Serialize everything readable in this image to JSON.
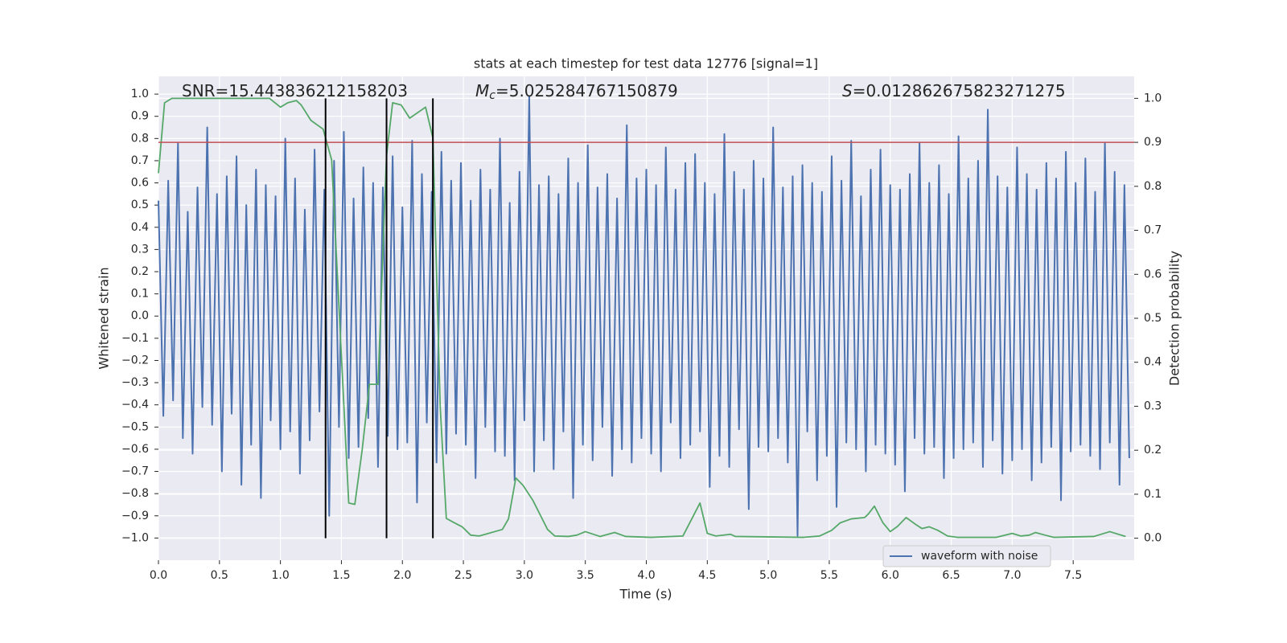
{
  "chart_data": {
    "type": "line",
    "title": "stats at each timestep for test data 12776 [signal=1]",
    "xlabel": "Time (s)",
    "ylabel": "Whitened strain",
    "y2label": "Detection probability",
    "annotations": [
      {
        "text": "SNR=15.443836212158203"
      },
      {
        "symbol": "M",
        "subscript": "c",
        "text": "=5.025284767150879"
      },
      {
        "symbol": "S",
        "text": "=0.012862675823271275"
      }
    ],
    "xlim": [
      0,
      8
    ],
    "xticks": [
      {
        "value": 0,
        "label": "0.0"
      },
      {
        "value": 0.5,
        "label": "0.5"
      },
      {
        "value": 1,
        "label": "1.0"
      },
      {
        "value": 1.5,
        "label": "1.5"
      },
      {
        "value": 2,
        "label": "2.0"
      },
      {
        "value": 2.5,
        "label": "2.5"
      },
      {
        "value": 3,
        "label": "3.0"
      },
      {
        "value": 3.5,
        "label": "3.5"
      },
      {
        "value": 4,
        "label": "4.0"
      },
      {
        "value": 4.5,
        "label": "4.5"
      },
      {
        "value": 5,
        "label": "5.0"
      },
      {
        "value": 5.5,
        "label": "5.5"
      },
      {
        "value": 6,
        "label": "6.0"
      },
      {
        "value": 6.5,
        "label": "6.5"
      },
      {
        "value": 7,
        "label": "7.0"
      },
      {
        "value": 7.5,
        "label": "7.5"
      }
    ],
    "ylim": [
      -1.1,
      1.08
    ],
    "yticks": [
      {
        "value": -1,
        "label": "−1.0"
      },
      {
        "value": -0.9,
        "label": "−0.9"
      },
      {
        "value": -0.8,
        "label": "−0.8"
      },
      {
        "value": -0.7,
        "label": "−0.7"
      },
      {
        "value": -0.6,
        "label": "−0.6"
      },
      {
        "value": -0.5,
        "label": "−0.5"
      },
      {
        "value": -0.4,
        "label": "−0.4"
      },
      {
        "value": -0.3,
        "label": "−0.3"
      },
      {
        "value": -0.2,
        "label": "−0.2"
      },
      {
        "value": -0.1,
        "label": "−0.1"
      },
      {
        "value": 0,
        "label": "0.0"
      },
      {
        "value": 0.1,
        "label": "0.1"
      },
      {
        "value": 0.2,
        "label": "0.2"
      },
      {
        "value": 0.3,
        "label": "0.3"
      },
      {
        "value": 0.4,
        "label": "0.4"
      },
      {
        "value": 0.5,
        "label": "0.5"
      },
      {
        "value": 0.6,
        "label": "0.6"
      },
      {
        "value": 0.7,
        "label": "0.7"
      },
      {
        "value": 0.8,
        "label": "0.8"
      },
      {
        "value": 0.9,
        "label": "0.9"
      },
      {
        "value": 1,
        "label": "1.0"
      }
    ],
    "y2lim": [
      -0.05,
      1.05
    ],
    "y2ticks": [
      {
        "value": 0,
        "label": "0.0"
      },
      {
        "value": 0.1,
        "label": "0.1"
      },
      {
        "value": 0.2,
        "label": "0.2"
      },
      {
        "value": 0.3,
        "label": "0.3"
      },
      {
        "value": 0.4,
        "label": "0.4"
      },
      {
        "value": 0.5,
        "label": "0.5"
      },
      {
        "value": 0.6,
        "label": "0.6"
      },
      {
        "value": 0.7,
        "label": "0.7"
      },
      {
        "value": 0.8,
        "label": "0.8"
      },
      {
        "value": 0.9,
        "label": "0.9"
      },
      {
        "value": 1,
        "label": "1.0"
      }
    ],
    "grid": true,
    "legend": "lower right",
    "threshold": {
      "value": 0.9,
      "axis": "y2",
      "color": "#c44e52"
    },
    "vlines": {
      "values": [
        1.37,
        1.87,
        2.25
      ],
      "color": "#000000"
    },
    "series": [
      {
        "name": "waveform with noise",
        "color": "#4c72b0",
        "legend": true,
        "x": [
          0,
          0.04,
          0.08,
          0.12,
          0.16,
          0.2,
          0.24,
          0.28,
          0.32,
          0.36,
          0.4,
          0.44,
          0.48,
          0.52,
          0.56,
          0.6,
          0.64,
          0.68,
          0.72,
          0.76,
          0.8,
          0.84,
          0.88,
          0.92,
          0.96,
          1,
          1.04,
          1.08,
          1.12,
          1.16,
          1.2,
          1.24,
          1.28,
          1.32,
          1.36,
          1.4,
          1.44,
          1.48,
          1.52,
          1.56,
          1.6,
          1.64,
          1.68,
          1.72,
          1.76,
          1.8,
          1.84,
          1.88,
          1.92,
          1.96,
          2,
          2.04,
          2.08,
          2.12,
          2.16,
          2.2,
          2.24,
          2.28,
          2.32,
          2.36,
          2.4,
          2.44,
          2.48,
          2.52,
          2.56,
          2.6,
          2.64,
          2.68,
          2.72,
          2.76,
          2.8,
          2.84,
          2.88,
          2.92,
          2.96,
          3,
          3.04,
          3.08,
          3.12,
          3.16,
          3.2,
          3.24,
          3.28,
          3.32,
          3.36,
          3.4,
          3.44,
          3.48,
          3.52,
          3.56,
          3.6,
          3.64,
          3.68,
          3.72,
          3.76,
          3.8,
          3.84,
          3.88,
          3.92,
          3.96,
          4,
          4.04,
          4.08,
          4.12,
          4.16,
          4.2,
          4.24,
          4.28,
          4.32,
          4.36,
          4.4,
          4.44,
          4.48,
          4.52,
          4.56,
          4.6,
          4.64,
          4.68,
          4.72,
          4.76,
          4.8,
          4.84,
          4.88,
          4.92,
          4.96,
          5,
          5.04,
          5.08,
          5.12,
          5.16,
          5.2,
          5.24,
          5.28,
          5.32,
          5.36,
          5.4,
          5.44,
          5.48,
          5.52,
          5.56,
          5.6,
          5.64,
          5.68,
          5.72,
          5.76,
          5.8,
          5.84,
          5.88,
          5.92,
          5.96,
          6,
          6.04,
          6.08,
          6.12,
          6.16,
          6.2,
          6.24,
          6.28,
          6.32,
          6.36,
          6.4,
          6.44,
          6.48,
          6.52,
          6.56,
          6.6,
          6.64,
          6.68,
          6.72,
          6.76,
          6.8,
          6.84,
          6.88,
          6.92,
          6.96,
          7,
          7.04,
          7.08,
          7.12,
          7.16,
          7.2,
          7.24,
          7.28,
          7.32,
          7.36,
          7.4,
          7.44,
          7.48,
          7.52,
          7.56,
          7.6,
          7.64,
          7.68,
          7.72,
          7.76,
          7.8,
          7.84,
          7.88,
          7.92,
          7.96
        ],
        "values": [
          0.52,
          -0.45,
          0.61,
          -0.38,
          0.78,
          -0.55,
          0.47,
          -0.62,
          0.58,
          -0.41,
          0.85,
          -0.49,
          0.55,
          -0.7,
          0.63,
          -0.44,
          0.72,
          -0.76,
          0.5,
          -0.58,
          0.66,
          -0.82,
          0.59,
          -0.47,
          0.54,
          -0.6,
          0.8,
          -0.52,
          0.62,
          -0.71,
          0.48,
          -0.56,
          0.75,
          -0.43,
          0.57,
          -0.9,
          0.7,
          -0.5,
          0.83,
          -0.64,
          0.53,
          -0.59,
          0.67,
          -0.46,
          0.6,
          -0.68,
          0.58,
          -0.54,
          0.72,
          -0.6,
          0.49,
          -0.57,
          0.79,
          -0.84,
          0.64,
          -0.48,
          0.56,
          -0.66,
          0.74,
          -0.62,
          0.61,
          -0.53,
          0.69,
          -0.58,
          0.52,
          -0.73,
          0.66,
          -0.5,
          0.57,
          -0.61,
          0.8,
          -0.63,
          0.51,
          -0.74,
          0.65,
          -0.47,
          0.99,
          -0.7,
          0.59,
          -0.56,
          0.63,
          -0.69,
          0.55,
          -0.52,
          0.71,
          -0.82,
          0.6,
          -0.58,
          0.77,
          -0.65,
          0.58,
          -0.5,
          0.64,
          -0.72,
          0.53,
          -0.6,
          0.86,
          -0.66,
          0.62,
          -0.55,
          0.66,
          -0.62,
          0.59,
          -0.7,
          0.76,
          -0.48,
          0.57,
          -0.64,
          0.69,
          -0.58,
          0.73,
          -0.52,
          0.6,
          -0.77,
          0.55,
          -0.63,
          0.82,
          -0.68,
          0.65,
          -0.51,
          0.57,
          -0.87,
          0.7,
          -0.59,
          0.62,
          -0.61,
          0.85,
          -0.55,
          0.58,
          -0.66,
          0.63,
          -0.99,
          0.68,
          -0.52,
          0.6,
          -0.74,
          0.56,
          -0.63,
          0.72,
          -0.86,
          0.61,
          -0.57,
          0.79,
          -0.6,
          0.54,
          -0.7,
          0.66,
          -0.58,
          0.75,
          -0.62,
          0.59,
          -0.67,
          0.57,
          -0.79,
          0.64,
          -0.55,
          0.78,
          -0.62,
          0.6,
          -0.59,
          0.68,
          -0.73,
          0.55,
          -0.64,
          0.81,
          -0.6,
          0.62,
          -0.57,
          0.7,
          -0.68,
          0.93,
          -0.56,
          0.63,
          -0.71,
          0.58,
          -0.65,
          0.76,
          -0.6,
          0.64,
          -0.74,
          0.57,
          -0.66,
          0.69,
          -0.59,
          0.62,
          -0.83,
          0.74,
          -0.61,
          0.6,
          -0.58,
          0.71,
          -0.63,
          0.56,
          -0.69,
          0.78,
          -0.57,
          0.65,
          -0.76,
          0.59,
          -0.64
        ]
      },
      {
        "name": "detection probability",
        "color": "#55a868",
        "axis": "y2",
        "legend": false,
        "x": [
          0,
          0.05,
          0.11,
          0.91,
          1.0,
          1.06,
          1.13,
          1.17,
          1.25,
          1.35,
          1.42,
          1.56,
          1.61,
          1.67,
          1.73,
          1.8,
          1.87,
          1.92,
          1.99,
          2.06,
          2.19,
          2.25,
          2.31,
          2.36,
          2.42,
          2.49,
          2.56,
          2.63,
          2.82,
          2.87,
          2.93,
          2.99,
          3.07,
          3.13,
          3.19,
          3.25,
          3.36,
          3.43,
          3.5,
          3.62,
          3.74,
          3.83,
          4.04,
          4.3,
          4.44,
          4.5,
          4.57,
          4.69,
          4.73,
          5.29,
          5.42,
          5.52,
          5.59,
          5.68,
          5.79,
          5.82,
          5.87,
          5.94,
          6.0,
          6.06,
          6.13,
          6.2,
          6.26,
          6.32,
          6.39,
          6.47,
          6.55,
          6.87,
          7.0,
          7.07,
          7.14,
          7.19,
          7.27,
          7.34,
          7.67,
          7.8,
          7.93
        ],
        "values": [
          0.83,
          0.99,
          1.0,
          1.0,
          0.98,
          0.99,
          0.995,
          0.985,
          0.95,
          0.93,
          0.86,
          0.08,
          0.077,
          0.2,
          0.35,
          0.35,
          0.87,
          0.99,
          0.985,
          0.955,
          0.98,
          0.91,
          0.3,
          0.045,
          0.036,
          0.026,
          0.007,
          0.005,
          0.02,
          0.044,
          0.137,
          0.12,
          0.086,
          0.053,
          0.02,
          0.005,
          0.004,
          0.007,
          0.015,
          0.004,
          0.013,
          0.004,
          0.002,
          0.005,
          0.08,
          0.011,
          0.005,
          0.009,
          0.004,
          0.002,
          0.005,
          0.018,
          0.035,
          0.044,
          0.047,
          0.055,
          0.073,
          0.035,
          0.015,
          0.027,
          0.047,
          0.033,
          0.022,
          0.026,
          0.018,
          0.005,
          0.002,
          0.002,
          0.011,
          0.005,
          0.007,
          0.013,
          0.007,
          0.002,
          0.004,
          0.015,
          0.004
        ]
      }
    ]
  }
}
